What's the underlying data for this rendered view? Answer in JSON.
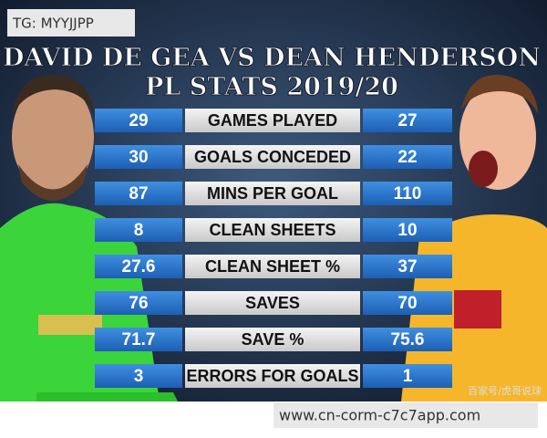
{
  "watermark_top": "TG: MYYJJPP",
  "header": {
    "title": "DAVID DE GEA VS DEAN HENDERSON",
    "subtitle": "PL STATS 2019/20"
  },
  "table": {
    "rows": [
      [
        29,
        "GAMES PLAYED",
        27
      ],
      [
        30,
        "GOALS CONCEDED",
        22
      ],
      [
        87,
        "MINS PER GOAL",
        110
      ],
      [
        8,
        "CLEAN SHEETS",
        10
      ],
      [
        27.6,
        "CLEAN SHEET %",
        37
      ],
      [
        76,
        "SAVES",
        70
      ],
      [
        71.7,
        "SAVE %",
        75.6
      ],
      [
        3,
        "ERRORS FOR GOALS",
        1
      ]
    ]
  },
  "source_mark": "百家号/虎哥说球",
  "watermark_bottom": "www.cn-corm-c7c7app.com"
}
